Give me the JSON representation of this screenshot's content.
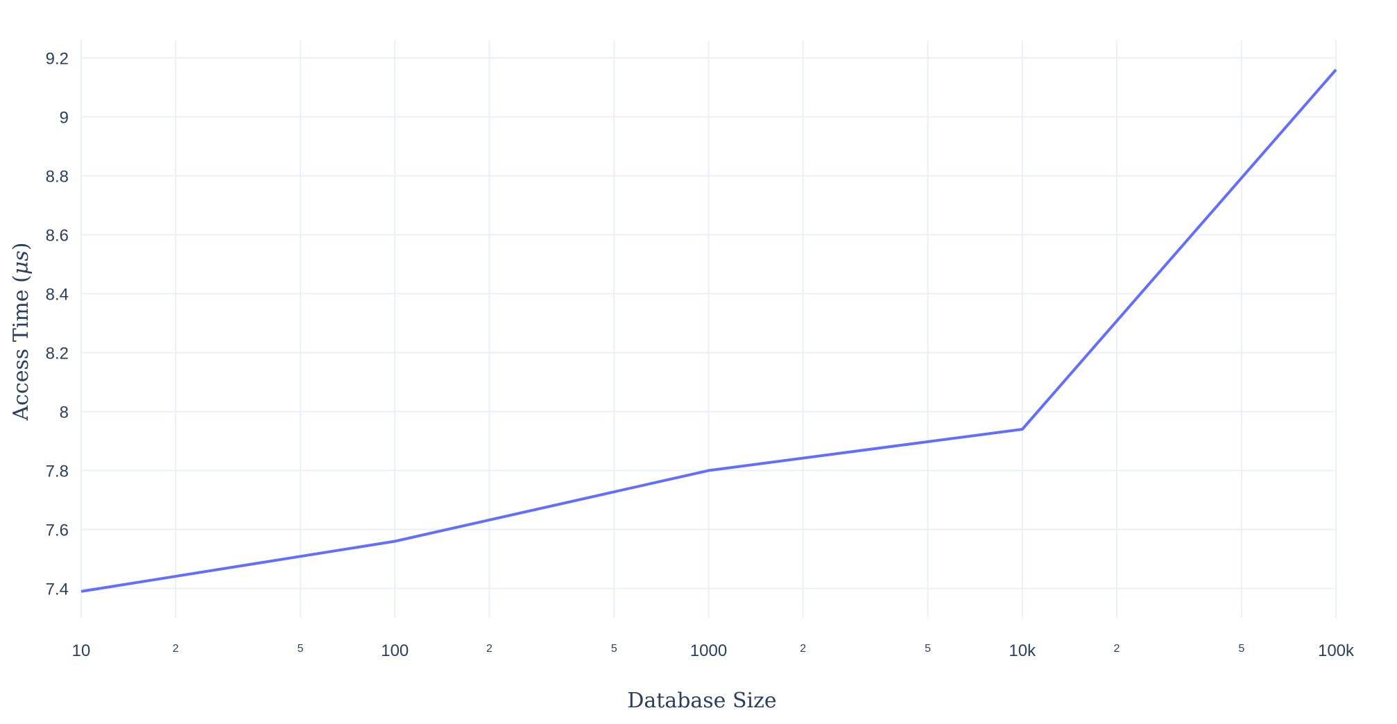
{
  "chart_data": {
    "type": "line",
    "title": "",
    "xlabel": "Database Size",
    "ylabel_text": "Access Time (",
    "ylabel_math": "μs",
    "ylabel_close": ")",
    "x_scale": "log",
    "xlim": [
      10,
      100000
    ],
    "ylim": [
      7.3,
      9.26
    ],
    "grid": true,
    "x_major_ticks": [
      {
        "value": 10,
        "label": "10"
      },
      {
        "value": 100,
        "label": "100"
      },
      {
        "value": 1000,
        "label": "1000"
      },
      {
        "value": 10000,
        "label": "10k"
      },
      {
        "value": 100000,
        "label": "100k"
      }
    ],
    "x_minor_ticks": [
      {
        "value": 20,
        "label": "2"
      },
      {
        "value": 50,
        "label": "5"
      },
      {
        "value": 200,
        "label": "2"
      },
      {
        "value": 500,
        "label": "5"
      },
      {
        "value": 2000,
        "label": "2"
      },
      {
        "value": 5000,
        "label": "5"
      },
      {
        "value": 20000,
        "label": "2"
      },
      {
        "value": 50000,
        "label": "5"
      }
    ],
    "y_ticks": [
      {
        "value": 7.4,
        "label": "7.4"
      },
      {
        "value": 7.6,
        "label": "7.6"
      },
      {
        "value": 7.8,
        "label": "7.8"
      },
      {
        "value": 8.0,
        "label": "8"
      },
      {
        "value": 8.2,
        "label": "8.2"
      },
      {
        "value": 8.4,
        "label": "8.4"
      },
      {
        "value": 8.6,
        "label": "8.6"
      },
      {
        "value": 8.8,
        "label": "8.8"
      },
      {
        "value": 9.0,
        "label": "9"
      },
      {
        "value": 9.2,
        "label": "9.2"
      }
    ],
    "series": [
      {
        "color": "#636efa",
        "x": [
          10,
          100,
          1000,
          10000,
          100000
        ],
        "y": [
          7.39,
          7.56,
          7.8,
          7.94,
          9.16
        ]
      }
    ]
  }
}
